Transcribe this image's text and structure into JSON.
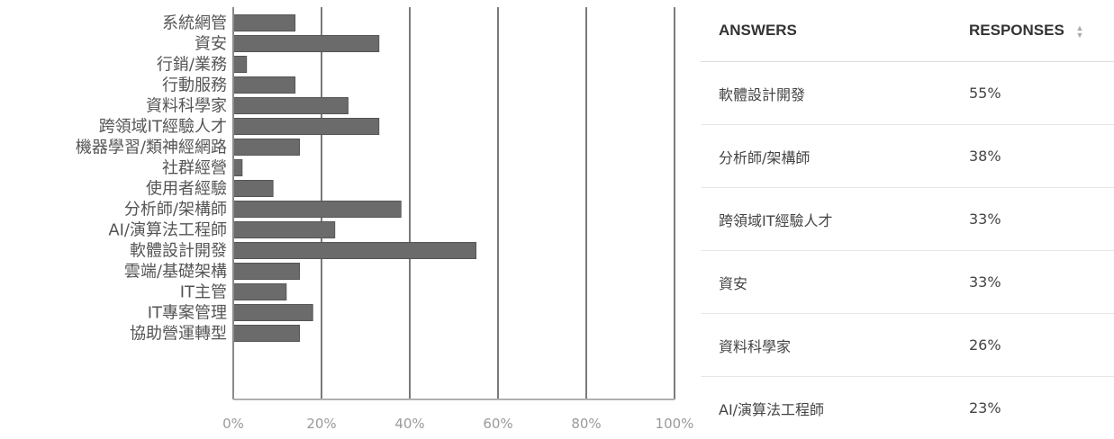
{
  "chart_data": {
    "type": "bar",
    "orientation": "horizontal",
    "categories": [
      "系統網管",
      "資安",
      "行銷/業務",
      "行動服務",
      "資料科學家",
      "跨領域IT經驗人才",
      "機器學習/類神經網路",
      "社群經營",
      "使用者經驗",
      "分析師/架構師",
      "AI/演算法工程師",
      "軟體設計開發",
      "雲端/基礎架構",
      "IT主管",
      "IT專案管理",
      "協助營運轉型"
    ],
    "values": [
      14,
      33,
      3,
      14,
      26,
      33,
      15,
      2,
      9,
      38,
      23,
      55,
      15,
      12,
      18,
      15
    ],
    "xlim": [
      0,
      100
    ],
    "xticks": [
      "0%",
      "20%",
      "40%",
      "60%",
      "80%",
      "100%"
    ],
    "grid": true,
    "bar_color": "#6b6b6b",
    "title": "",
    "xlabel": "",
    "ylabel": ""
  },
  "table": {
    "headers": {
      "answers": "ANSWERS",
      "responses": "RESPONSES"
    },
    "rows": [
      {
        "answer": "軟體設計開發",
        "response": "55%"
      },
      {
        "answer": "分析師/架構師",
        "response": "38%"
      },
      {
        "answer": "跨領域IT經驗人才",
        "response": "33%"
      },
      {
        "answer": "資安",
        "response": "33%"
      },
      {
        "answer": "資料科學家",
        "response": "26%"
      },
      {
        "answer": "AI/演算法工程師",
        "response": "23%"
      }
    ]
  }
}
